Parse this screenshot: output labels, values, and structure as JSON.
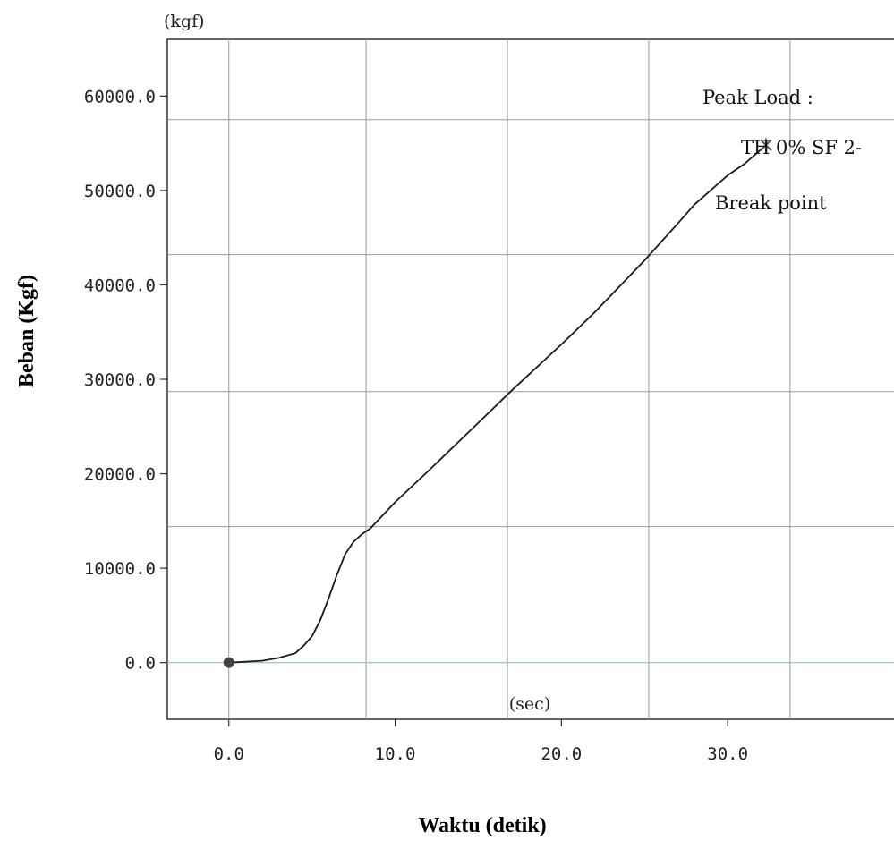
{
  "chart_data": {
    "type": "line",
    "title": "",
    "xlabel": "Waktu (detik)",
    "ylabel": "Beban (Kgf)",
    "x_unit": "(sec)",
    "y_unit": "(kgf)",
    "xlim": [
      -3.7,
      40
    ],
    "ylim": [
      -6000,
      66000
    ],
    "x_ticks": [
      0,
      10,
      20,
      30
    ],
    "x_tick_labels": [
      "0.0",
      "10.0",
      "20.0",
      "30.0"
    ],
    "y_ticks": [
      0,
      10000,
      20000,
      30000,
      40000,
      50000,
      60000
    ],
    "y_tick_labels": [
      "0.0",
      "10000.0",
      "20000.0",
      "30000.0",
      "40000.0",
      "50000.0",
      "60000.0"
    ],
    "grid": true,
    "series": [
      {
        "x": [
          0,
          2,
          3,
          4,
          4.5,
          5,
          5.5,
          6,
          6.5,
          7,
          7.5,
          8,
          8.5,
          10,
          12,
          15,
          17,
          20,
          22,
          25,
          27,
          28,
          30,
          31,
          32.3
        ],
        "y": [
          0,
          200,
          500,
          1000,
          1800,
          2800,
          4500,
          6800,
          9300,
          11500,
          12800,
          13600,
          14200,
          17000,
          20300,
          25400,
          28800,
          33700,
          37100,
          42600,
          46500,
          48500,
          51600,
          52800,
          54800
        ]
      }
    ],
    "start_marker": {
      "x": 0,
      "y": 0
    },
    "break_marker": {
      "x": 32.3,
      "y": 54800
    },
    "annotations": [
      "Peak Load :",
      "TH 0% SF 2-",
      "Break point"
    ]
  }
}
